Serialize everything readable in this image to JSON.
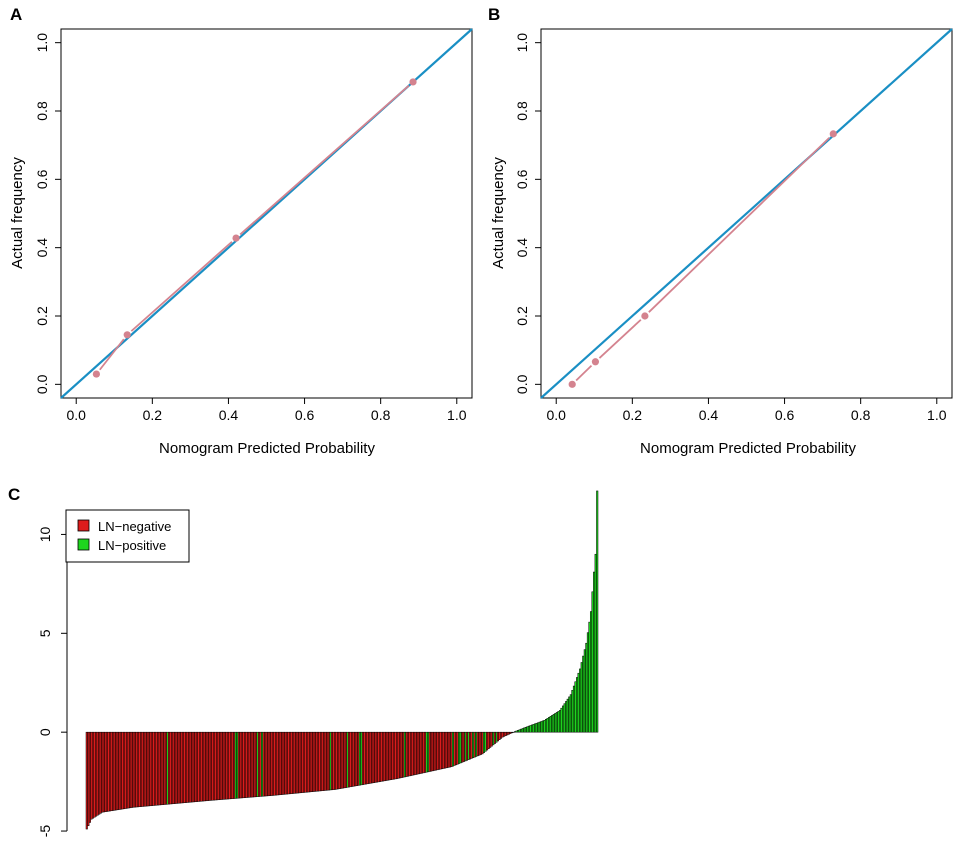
{
  "chart_data": [
    {
      "type": "scatter",
      "panel": "A",
      "xlabel": "Nomogram Predicted Probability",
      "ylabel": "Actual frequency",
      "xlim": [
        -0.04,
        1.04
      ],
      "ylim": [
        -0.04,
        1.04
      ],
      "xticks": [
        "0.0",
        "0.2",
        "0.4",
        "0.6",
        "0.8",
        "1.0"
      ],
      "yticks": [
        "0.0",
        "0.2",
        "0.4",
        "0.6",
        "0.8",
        "1.0"
      ],
      "reference_line": {
        "from": [
          -0.04,
          -0.04
        ],
        "to": [
          1.04,
          1.04
        ],
        "color": "#1a8fc4"
      },
      "series": [
        {
          "x": [
            0.053,
            0.134,
            0.42,
            0.885
          ],
          "y": [
            0.03,
            0.145,
            0.428,
            0.885
          ],
          "color": "#d4838f"
        }
      ],
      "grid": false
    },
    {
      "type": "scatter",
      "panel": "B",
      "xlabel": "Nomogram Predicted Probability",
      "ylabel": "Actual frequency",
      "xlim": [
        -0.04,
        1.04
      ],
      "ylim": [
        -0.04,
        1.04
      ],
      "xticks": [
        "0.0",
        "0.2",
        "0.4",
        "0.6",
        "0.8",
        "1.0"
      ],
      "yticks": [
        "0.0",
        "0.2",
        "0.4",
        "0.6",
        "0.8",
        "1.0"
      ],
      "reference_line": {
        "from": [
          -0.04,
          -0.04
        ],
        "to": [
          1.04,
          1.04
        ],
        "color": "#1a8fc4"
      },
      "series": [
        {
          "x": [
            0.042,
            0.103,
            0.233,
            0.728
          ],
          "y": [
            0.0,
            0.066,
            0.2,
            0.733
          ],
          "color": "#d4838f"
        }
      ],
      "grid": false
    },
    {
      "type": "bar",
      "panel": "C",
      "yticks": [
        "-5",
        "0",
        "5",
        "10"
      ],
      "ylim": [
        -5.2,
        12.5
      ],
      "n_bars": 330,
      "legend": {
        "position": "top-left",
        "entries": [
          {
            "label": "LN−negative",
            "color": "#dd1c1c"
          },
          {
            "label": "LN−positive",
            "color": "#1ed61e"
          }
        ]
      },
      "profile": [
        {
          "rank": 0,
          "value": -4.9
        },
        {
          "rank": 3,
          "value": -4.4
        },
        {
          "rank": 10,
          "value": -4.05
        },
        {
          "rank": 30,
          "value": -3.8
        },
        {
          "rank": 80,
          "value": -3.45
        },
        {
          "rank": 120,
          "value": -3.2
        },
        {
          "rank": 160,
          "value": -2.9
        },
        {
          "rank": 200,
          "value": -2.35
        },
        {
          "rank": 235,
          "value": -1.75
        },
        {
          "rank": 255,
          "value": -1.1
        },
        {
          "rank": 268,
          "value": -0.25
        },
        {
          "rank": 275,
          "value": 0.0
        },
        {
          "rank": 283,
          "value": 0.25
        },
        {
          "rank": 295,
          "value": 0.6
        },
        {
          "rank": 305,
          "value": 1.1
        },
        {
          "rank": 312,
          "value": 1.9
        },
        {
          "rank": 318,
          "value": 3.2
        },
        {
          "rank": 322,
          "value": 4.5
        },
        {
          "rank": 325,
          "value": 6.1
        },
        {
          "rank": 327,
          "value": 8.1
        },
        {
          "rank": 328,
          "value": 9.0
        },
        {
          "rank": 329,
          "value": 12.2
        }
      ],
      "positive_ranks": [
        52,
        96,
        97,
        110,
        113,
        157,
        168,
        176,
        177,
        205,
        219,
        220,
        236,
        240,
        241,
        244,
        246,
        249,
        251,
        256,
        257,
        262,
        264,
        276,
        277,
        278,
        279,
        280,
        281,
        282,
        283,
        284,
        285,
        286,
        287,
        288,
        289,
        290,
        291,
        292,
        293,
        294,
        295,
        296,
        297,
        298,
        299,
        300,
        301,
        302,
        303,
        304,
        305,
        306,
        307,
        308,
        309,
        310,
        311,
        312,
        313,
        314,
        315,
        316,
        317,
        318,
        319,
        320,
        321,
        322,
        323,
        324,
        325,
        326,
        327,
        328,
        329
      ],
      "grid": false
    }
  ]
}
